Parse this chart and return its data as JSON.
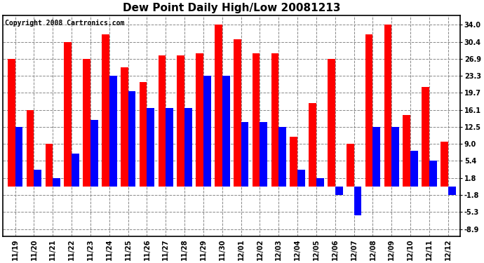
{
  "title": "Dew Point Daily High/Low 20081213",
  "copyright": "Copyright 2008 Cartronics.com",
  "categories": [
    "11/19",
    "11/20",
    "11/21",
    "11/22",
    "11/23",
    "11/24",
    "11/25",
    "11/26",
    "11/27",
    "11/28",
    "11/29",
    "11/30",
    "12/01",
    "12/02",
    "12/03",
    "12/04",
    "12/05",
    "12/06",
    "12/07",
    "12/08",
    "12/09",
    "12/10",
    "12/11",
    "12/12"
  ],
  "highs": [
    26.9,
    16.1,
    9.0,
    30.4,
    26.9,
    32.0,
    25.0,
    22.0,
    27.5,
    27.5,
    28.0,
    34.0,
    31.0,
    28.0,
    28.0,
    10.5,
    17.5,
    26.9,
    9.0,
    32.0,
    34.0,
    15.0,
    21.0,
    9.5
  ],
  "lows": [
    12.5,
    3.5,
    1.8,
    7.0,
    14.0,
    23.3,
    20.0,
    16.5,
    16.5,
    16.5,
    23.3,
    23.3,
    13.5,
    13.5,
    12.5,
    3.6,
    1.8,
    -1.8,
    -6.0,
    12.5,
    12.5,
    7.5,
    5.4,
    -1.8
  ],
  "high_color": "#ff0000",
  "low_color": "#0000ff",
  "bg_color": "#ffffff",
  "grid_color": "#888888",
  "yticks": [
    34.0,
    30.4,
    26.9,
    23.3,
    19.7,
    16.1,
    12.5,
    9.0,
    5.4,
    1.8,
    -1.8,
    -5.3,
    -8.9
  ],
  "ylim": [
    -10.5,
    36.0
  ],
  "bar_width": 0.4,
  "title_fontsize": 11,
  "tick_fontsize": 7,
  "copyright_fontsize": 7
}
